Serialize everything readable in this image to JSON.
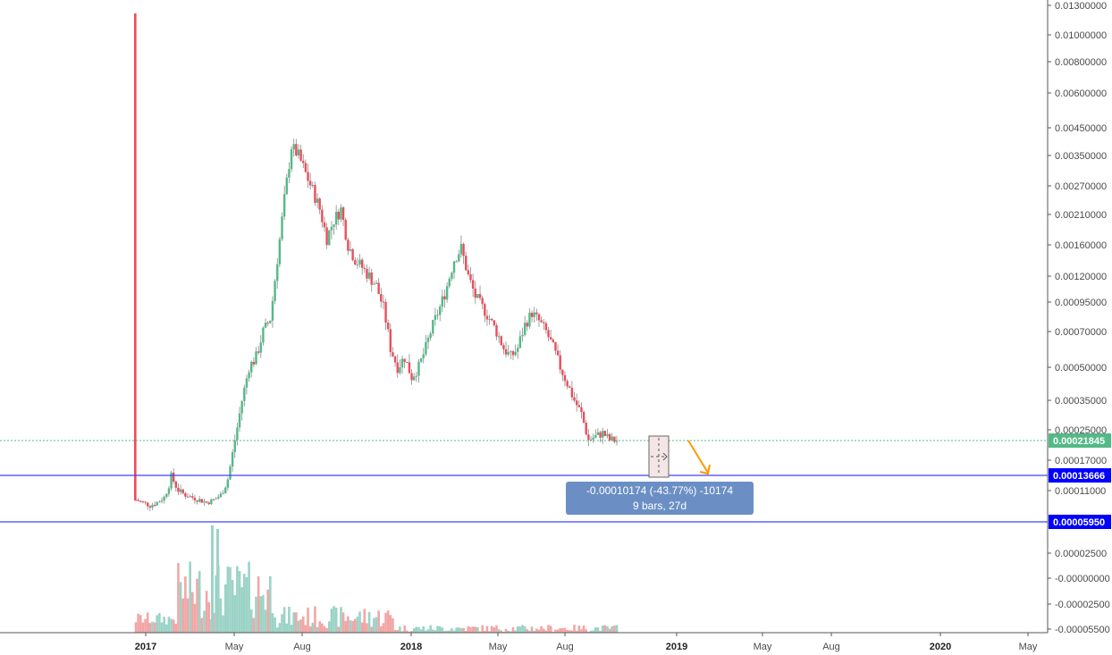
{
  "chart_data": {
    "type": "candlestick",
    "title": "",
    "xlabel": "",
    "ylabel": "",
    "y_scale": "log",
    "y_tick_labels": [
      "0.01300000",
      "0.01000000",
      "0.00800000",
      "0.00600000",
      "0.00450000",
      "0.00350000",
      "0.00270000",
      "0.00210000",
      "0.00160000",
      "0.00120000",
      "0.00095000",
      "0.00070000",
      "0.00050000",
      "0.00035000",
      "0.00025000",
      "0.00017000",
      "0.00011000",
      "0.00002500",
      "-0.00000000",
      "-0.00002500",
      "-0.00005500"
    ],
    "x_tick_labels": [
      "2017",
      "May",
      "Aug",
      "2018",
      "May",
      "Aug",
      "2019",
      "May",
      "Aug",
      "2020",
      "May"
    ],
    "bold_x_ticks": [
      "2017",
      "2018",
      "2019",
      "2020"
    ],
    "price_tags": {
      "current": {
        "value": "0.00021845",
        "color": "#53b987"
      },
      "level_upper": {
        "value": "0.00013666",
        "color": "#0000ff"
      },
      "level_lower": {
        "value": "0.00005950",
        "color": "#0000ff"
      }
    },
    "measure_tooltip": {
      "line1": "-0.00010174 (-43.77%) -10174",
      "line2": "9 bars, 27d"
    },
    "colors": {
      "up": "#53b987",
      "down": "#eb4d5c",
      "volume_up": "#9bd3c6",
      "volume_down": "#f2a6a6",
      "level_line": "#4040ff",
      "tooltip_bg": "#6b8fc4",
      "arrow": "#ff9800"
    },
    "weekly_closes_approx": [
      9e-05,
      8.5e-05,
      8e-05,
      8.5e-05,
      9.5e-05,
      0.000135,
      0.00011,
      0.0001,
      9.5e-05,
      9e-05,
      8.5e-05,
      9e-05,
      0.0001,
      0.00013,
      0.00022,
      0.00035,
      0.0005,
      0.00055,
      0.0007,
      0.0008,
      0.0014,
      0.0024,
      0.0038,
      0.0035,
      0.003,
      0.0026,
      0.0022,
      0.0017,
      0.002,
      0.0022,
      0.0016,
      0.0014,
      0.0013,
      0.0012,
      0.0011,
      0.0009,
      0.0006,
      0.0005,
      0.00055,
      0.00045,
      0.0005,
      0.0006,
      0.00075,
      0.0009,
      0.0011,
      0.0014,
      0.00155,
      0.0012,
      0.001,
      0.0009,
      0.0008,
      0.0007,
      0.0006,
      0.00055,
      0.0006,
      0.00075,
      0.00085,
      0.00078,
      0.0007,
      0.0006,
      0.0005,
      0.00042,
      0.00035,
      0.0003,
      0.00022,
      0.00023,
      0.00024,
      0.00022,
      0.000218
    ]
  }
}
